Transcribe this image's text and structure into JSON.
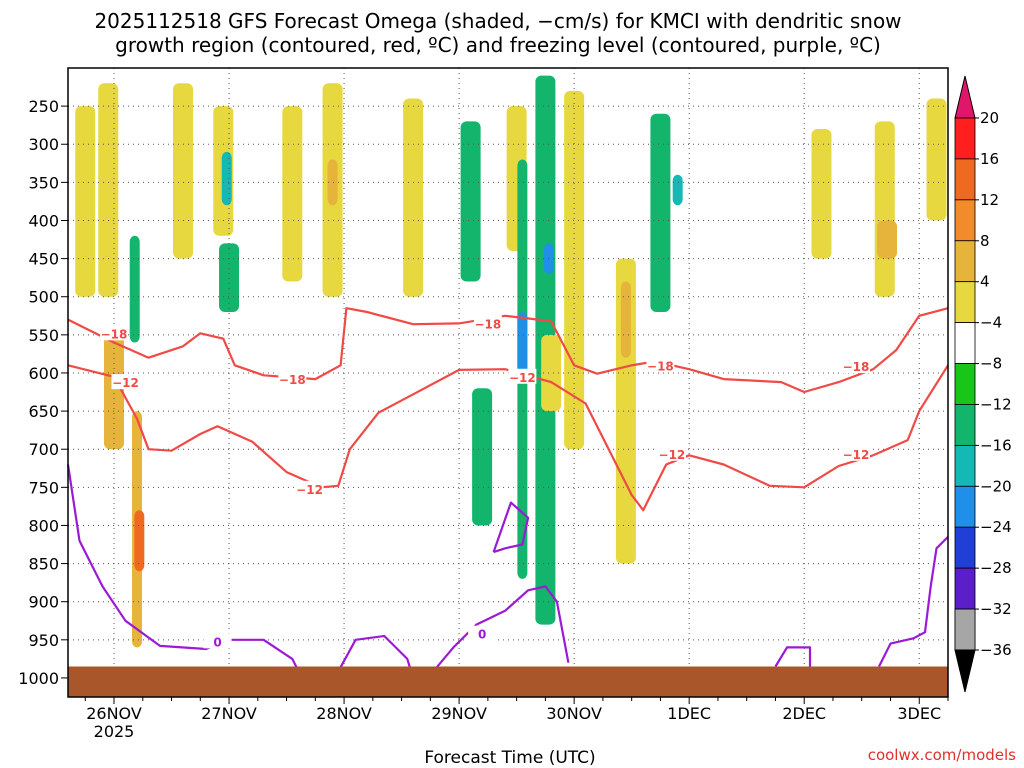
{
  "chart_data": {
    "type": "heatmap",
    "title_line1": "2025112518 GFS Forecast Omega (shaded, −cm/s) for KMCI with dendritic snow",
    "title_line2": "growth region (contoured, red, ºC) and freezing level (contoured, purple, ºC)",
    "xlabel": "Forecast Time (UTC)",
    "ylabel": "",
    "credit": "coolwx.com/models",
    "x_axis": {
      "unit": "days since 26NOV 00Z",
      "range": [
        -0.4,
        7.25
      ],
      "ticks": [
        {
          "v": 0,
          "label": "26NOV",
          "sub": "2025"
        },
        {
          "v": 1,
          "label": "27NOV",
          "sub": ""
        },
        {
          "v": 2,
          "label": "28NOV",
          "sub": ""
        },
        {
          "v": 3,
          "label": "29NOV",
          "sub": ""
        },
        {
          "v": 4,
          "label": "30NOV",
          "sub": ""
        },
        {
          "v": 5,
          "label": "1DEC",
          "sub": ""
        },
        {
          "v": 6,
          "label": "2DEC",
          "sub": ""
        },
        {
          "v": 7,
          "label": "3DEC",
          "sub": ""
        }
      ]
    },
    "y_axis": {
      "unit": "hPa",
      "range": [
        1025,
        200
      ],
      "ticks": [
        250,
        300,
        350,
        400,
        450,
        500,
        550,
        600,
        650,
        700,
        750,
        800,
        850,
        900,
        950,
        1000
      ]
    },
    "colorbar": {
      "levels": [
        "20",
        "16",
        "12",
        "8",
        "4",
        "−4",
        "−8",
        "−12",
        "−16",
        "−20",
        "−24",
        "−28",
        "−32",
        "−36"
      ],
      "colors": [
        "#ff1f1f",
        "#ee6a22",
        "#f08c2c",
        "#e6b43a",
        "#e6d83e",
        "#ffffff",
        "#19c519",
        "#12b56b",
        "#14b9b6",
        "#1f8fe8",
        "#1f3fd6",
        "#5a1fc8",
        "#7a18b0",
        "#a6a6a6"
      ],
      "top_arrow": "#e0166a",
      "bottom_arrow": "#000000"
    },
    "omega_cells": [
      {
        "t": -0.25,
        "p1": 500,
        "p2": 250,
        "v": 6
      },
      {
        "t": -0.05,
        "p1": 500,
        "p2": 220,
        "v": 5
      },
      {
        "t": 0.0,
        "p1": 700,
        "p2": 550,
        "v": 8
      },
      {
        "t": 0.2,
        "p1": 960,
        "p2": 650,
        "v": 10
      },
      {
        "t": 0.22,
        "p1": 860,
        "p2": 780,
        "v": 18
      },
      {
        "t": 0.18,
        "p1": 560,
        "p2": 420,
        "v": -10
      },
      {
        "t": 0.6,
        "p1": 450,
        "p2": 220,
        "v": 6
      },
      {
        "t": 0.95,
        "p1": 420,
        "p2": 250,
        "v": 6
      },
      {
        "t": 0.98,
        "p1": 380,
        "p2": 310,
        "v": -14
      },
      {
        "t": 1.0,
        "p1": 520,
        "p2": 430,
        "v": -8
      },
      {
        "t": 1.55,
        "p1": 480,
        "p2": 250,
        "v": 5
      },
      {
        "t": 1.9,
        "p1": 500,
        "p2": 220,
        "v": 6
      },
      {
        "t": 1.9,
        "p1": 380,
        "p2": 320,
        "v": 10
      },
      {
        "t": 2.6,
        "p1": 500,
        "p2": 240,
        "v": 5
      },
      {
        "t": 3.1,
        "p1": 480,
        "p2": 270,
        "v": -8
      },
      {
        "t": 3.2,
        "p1": 800,
        "p2": 620,
        "v": -8
      },
      {
        "t": 3.5,
        "p1": 440,
        "p2": 250,
        "v": 5
      },
      {
        "t": 3.55,
        "p1": 870,
        "p2": 320,
        "v": -10
      },
      {
        "t": 3.55,
        "p1": 600,
        "p2": 520,
        "v": -18
      },
      {
        "t": 3.75,
        "p1": 930,
        "p2": 210,
        "v": -8
      },
      {
        "t": 3.78,
        "p1": 470,
        "p2": 430,
        "v": -18
      },
      {
        "t": 3.8,
        "p1": 650,
        "p2": 550,
        "v": 6
      },
      {
        "t": 4.0,
        "p1": 700,
        "p2": 230,
        "v": 5
      },
      {
        "t": 4.45,
        "p1": 850,
        "p2": 450,
        "v": 6
      },
      {
        "t": 4.45,
        "p1": 580,
        "p2": 480,
        "v": 10
      },
      {
        "t": 4.75,
        "p1": 520,
        "p2": 260,
        "v": -8
      },
      {
        "t": 4.9,
        "p1": 380,
        "p2": 340,
        "v": -13
      },
      {
        "t": 6.15,
        "p1": 450,
        "p2": 280,
        "v": 5
      },
      {
        "t": 6.7,
        "p1": 500,
        "p2": 270,
        "v": 5
      },
      {
        "t": 6.72,
        "p1": 450,
        "p2": 400,
        "v": 9
      },
      {
        "t": 7.15,
        "p1": 400,
        "p2": 240,
        "v": 5
      }
    ],
    "contours": [
      {
        "name": "dgz-upper",
        "label": "−18",
        "color": "#f04a46",
        "points": [
          [
            -0.4,
            530
          ],
          [
            0,
            560
          ],
          [
            0.3,
            580
          ],
          [
            0.6,
            565
          ],
          [
            0.75,
            548
          ],
          [
            0.95,
            555
          ],
          [
            1.05,
            590
          ],
          [
            1.3,
            603
          ],
          [
            1.75,
            608
          ],
          [
            1.97,
            590
          ],
          [
            2.02,
            515
          ],
          [
            2.2,
            520
          ],
          [
            2.6,
            536
          ],
          [
            3.0,
            535
          ],
          [
            3.4,
            525
          ],
          [
            3.8,
            532
          ],
          [
            4.0,
            590
          ],
          [
            4.2,
            601
          ],
          [
            4.5,
            590
          ],
          [
            4.7,
            585
          ],
          [
            5.0,
            595
          ],
          [
            5.3,
            608
          ],
          [
            5.8,
            612
          ],
          [
            6.0,
            625
          ],
          [
            6.3,
            612
          ],
          [
            6.6,
            595
          ],
          [
            6.8,
            570
          ],
          [
            7.0,
            525
          ],
          [
            7.25,
            515
          ]
        ],
        "label_at": [
          [
            0.0,
            548
          ],
          [
            1.55,
            608
          ],
          [
            3.25,
            535
          ],
          [
            4.75,
            590
          ],
          [
            6.45,
            591
          ]
        ]
      },
      {
        "name": "dgz-lower",
        "label": "−12",
        "color": "#f04a46",
        "points": [
          [
            -0.4,
            590
          ],
          [
            0.0,
            605
          ],
          [
            0.2,
            660
          ],
          [
            0.3,
            700
          ],
          [
            0.5,
            702
          ],
          [
            0.75,
            680
          ],
          [
            0.9,
            670
          ],
          [
            1.2,
            690
          ],
          [
            1.5,
            730
          ],
          [
            1.8,
            750
          ],
          [
            1.95,
            748
          ],
          [
            2.05,
            700
          ],
          [
            2.3,
            652
          ],
          [
            2.6,
            628
          ],
          [
            3.0,
            596
          ],
          [
            3.4,
            595
          ],
          [
            3.8,
            612
          ],
          [
            4.1,
            640
          ],
          [
            4.3,
            700
          ],
          [
            4.5,
            760
          ],
          [
            4.6,
            780
          ],
          [
            4.8,
            720
          ],
          [
            5.0,
            708
          ],
          [
            5.3,
            720
          ],
          [
            5.7,
            748
          ],
          [
            6.0,
            750
          ],
          [
            6.3,
            722
          ],
          [
            6.6,
            708
          ],
          [
            6.9,
            688
          ],
          [
            7.0,
            650
          ],
          [
            7.25,
            590
          ]
        ],
        "label_at": [
          [
            0.1,
            612
          ],
          [
            1.7,
            752
          ],
          [
            3.55,
            605
          ],
          [
            4.85,
            706
          ],
          [
            6.45,
            706
          ]
        ]
      },
      {
        "name": "freezing-level",
        "label": "0",
        "color": "#9c1ad6",
        "points": [
          [
            -0.4,
            720
          ],
          [
            -0.3,
            820
          ],
          [
            -0.1,
            880
          ],
          [
            0.1,
            925
          ],
          [
            0.4,
            958
          ],
          [
            0.8,
            962
          ],
          [
            1.0,
            950
          ],
          [
            1.3,
            950
          ],
          [
            1.55,
            975
          ],
          [
            1.65,
            1005
          ]
        ],
        "label_at": [
          [
            0.9,
            952
          ]
        ]
      },
      {
        "name": "freezing-level-2",
        "label": "",
        "color": "#9c1ad6",
        "points": [
          [
            1.9,
            1005
          ],
          [
            2.1,
            950
          ],
          [
            2.35,
            945
          ],
          [
            2.55,
            975
          ],
          [
            2.6,
            1000
          ]
        ],
        "label_at": []
      },
      {
        "name": "freezing-level-3",
        "label": "0",
        "color": "#9c1ad6",
        "points": [
          [
            2.7,
            1005
          ],
          [
            2.95,
            960
          ],
          [
            3.15,
            930
          ],
          [
            3.4,
            912
          ],
          [
            3.6,
            885
          ],
          [
            3.75,
            880
          ],
          [
            3.85,
            900
          ],
          [
            3.95,
            980
          ]
        ],
        "label_at": [
          [
            3.2,
            942
          ]
        ]
      },
      {
        "name": "freezing-level-4",
        "label": "",
        "color": "#9c1ad6",
        "points": [
          [
            3.3,
            835
          ],
          [
            3.45,
            770
          ],
          [
            3.6,
            790
          ],
          [
            3.55,
            825
          ],
          [
            3.4,
            830
          ],
          [
            3.3,
            835
          ]
        ],
        "label_at": []
      },
      {
        "name": "freezing-level-5",
        "label": "",
        "color": "#9c1ad6",
        "points": [
          [
            5.75,
            985
          ],
          [
            5.85,
            960
          ],
          [
            6.05,
            960
          ],
          [
            6.05,
            985
          ]
        ],
        "label_at": []
      },
      {
        "name": "freezing-level-6",
        "label": "",
        "color": "#9c1ad6",
        "points": [
          [
            6.65,
            985
          ],
          [
            6.75,
            955
          ],
          [
            6.95,
            948
          ],
          [
            7.05,
            940
          ],
          [
            7.1,
            880
          ],
          [
            7.15,
            830
          ],
          [
            7.25,
            815
          ]
        ],
        "label_at": []
      }
    ],
    "ground": {
      "top_hPa": 985,
      "color": "#a8562a"
    }
  }
}
